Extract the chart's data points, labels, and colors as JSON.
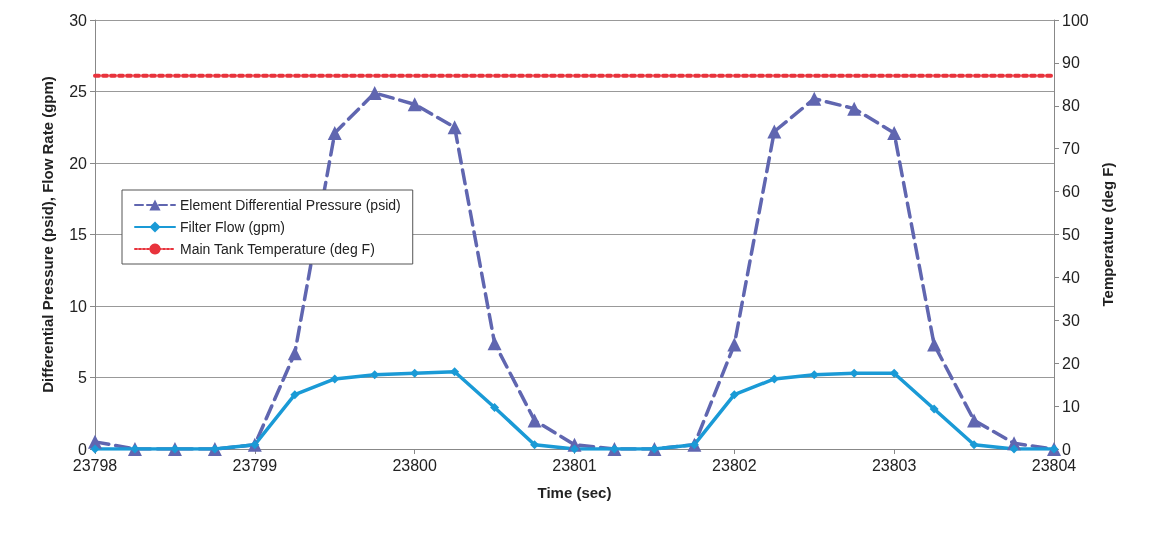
{
  "chart_data": {
    "type": "line",
    "xlabel": "Time (sec)",
    "ylabel": "Differential Pressure (psid), Flow Rate (gpm)",
    "y2label": "Temperature (deg F)",
    "x": [
      23798,
      23798.25,
      23798.5,
      23798.75,
      23799,
      23799.25,
      23799.5,
      23799.75,
      23800,
      23800.25,
      23800.5,
      23800.75,
      23801,
      23801.25,
      23801.5,
      23801.75,
      23802,
      23802.25,
      23802.5,
      23802.75,
      23803,
      23803.25,
      23803.5,
      23803.75,
      23804
    ],
    "series": [
      {
        "name": "Element Differential Pressure (psid)",
        "color": "#6066b0",
        "marker": "triangle",
        "line_style": "dashed",
        "values": [
          0.5,
          0,
          0,
          0,
          0.3,
          6.7,
          22.1,
          24.9,
          24.1,
          22.5,
          7.4,
          2.0,
          0.3,
          0,
          0,
          0.3,
          7.3,
          22.2,
          24.5,
          23.8,
          22.1,
          7.3,
          2.0,
          0.4,
          0
        ]
      },
      {
        "name": "Filter Flow (gpm)",
        "color": "#1a9ad6",
        "marker": "diamond",
        "line_style": "solid",
        "values": [
          0,
          0,
          0,
          0,
          0.3,
          3.8,
          4.9,
          5.2,
          5.3,
          5.4,
          2.9,
          0.3,
          0,
          0,
          0,
          0.3,
          3.8,
          4.9,
          5.2,
          5.3,
          5.3,
          2.8,
          0.3,
          0,
          0
        ]
      },
      {
        "name": "Main Tank Temperature (deg F)",
        "color": "#e8333c",
        "marker": "none",
        "line_style": "dotted",
        "axis": "y2",
        "values": [
          87,
          87,
          87,
          87,
          87,
          87,
          87,
          87,
          87,
          87,
          87,
          87,
          87,
          87,
          87,
          87,
          87,
          87,
          87,
          87,
          87,
          87,
          87,
          87,
          87
        ]
      }
    ],
    "xlim": [
      23798,
      23804
    ],
    "xticks": [
      23798,
      23799,
      23800,
      23801,
      23802,
      23803,
      23804
    ],
    "ylim": [
      0,
      30
    ],
    "yticks": [
      0,
      5,
      10,
      15,
      20,
      25,
      30
    ],
    "y2lim": [
      0,
      100
    ],
    "y2ticks": [
      0,
      10,
      20,
      30,
      40,
      50,
      60,
      70,
      80,
      90,
      100
    ],
    "grid": "y",
    "legend": "center left"
  }
}
